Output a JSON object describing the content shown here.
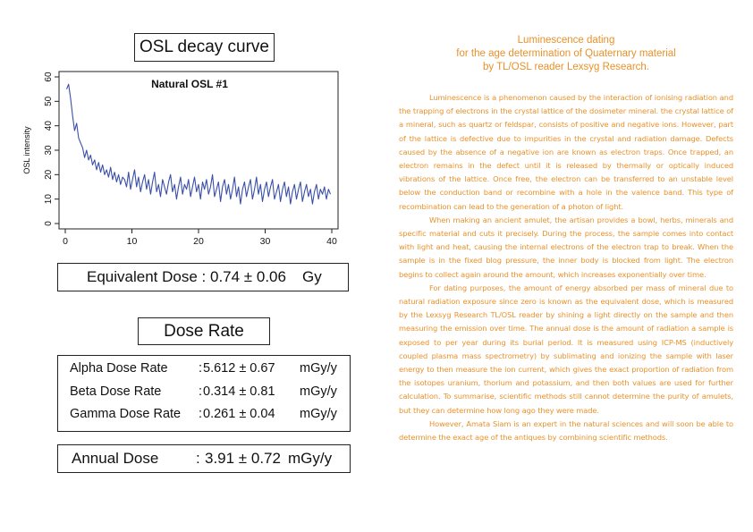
{
  "left_panel": {
    "osl_title": "OSL decay curve",
    "equivalent_dose": {
      "label": "Equivalent Dose :",
      "value": "0.74 ± 0.06",
      "unit": "Gy"
    },
    "dose_rate_title": "Dose Rate",
    "dose_rates": [
      {
        "label": "Alpha Dose Rate",
        "sep": ":",
        "value": "5.612 ± 0.67",
        "unit": "mGy/y"
      },
      {
        "label": "Beta Dose Rate",
        "sep": ":",
        "value": "0.314 ± 0.81",
        "unit": "mGy/y"
      },
      {
        "label": "Gamma Dose Rate",
        "sep": ":",
        "value": "0.261 ± 0.04",
        "unit": "mGy/y"
      }
    ],
    "annual_dose": {
      "label": "Annual Dose",
      "sep": ":",
      "value": "3.91 ± 0.72",
      "unit": "mGy/y"
    }
  },
  "chart_data": {
    "type": "line",
    "title": "Natural OSL #1",
    "xlabel": "",
    "ylabel": "OSL intensity",
    "xlim": [
      0,
      40
    ],
    "ylim": [
      0,
      60
    ],
    "xticks": [
      0,
      10,
      20,
      30,
      40
    ],
    "yticks": [
      0,
      10,
      20,
      30,
      40,
      50,
      60
    ],
    "color": "#3a4fa8",
    "series": [
      {
        "values": [
          [
            0.2,
            55
          ],
          [
            0.5,
            57
          ],
          [
            0.8,
            51
          ],
          [
            1.1,
            44
          ],
          [
            1.4,
            38
          ],
          [
            1.7,
            41
          ],
          [
            2.0,
            35
          ],
          [
            2.3,
            33
          ],
          [
            2.6,
            31
          ],
          [
            2.9,
            27
          ],
          [
            3.2,
            30
          ],
          [
            3.5,
            26
          ],
          [
            3.8,
            28
          ],
          [
            4.1,
            24
          ],
          [
            4.4,
            26
          ],
          [
            4.7,
            22
          ],
          [
            5.0,
            25
          ],
          [
            5.3,
            21
          ],
          [
            5.6,
            24
          ],
          [
            5.9,
            20
          ],
          [
            6.2,
            22
          ],
          [
            6.5,
            19
          ],
          [
            6.8,
            23
          ],
          [
            7.1,
            18
          ],
          [
            7.4,
            21
          ],
          [
            7.7,
            17
          ],
          [
            8.0,
            20
          ],
          [
            8.3,
            16
          ],
          [
            8.6,
            19
          ],
          [
            8.9,
            18
          ],
          [
            9.2,
            15
          ],
          [
            9.5,
            21
          ],
          [
            9.8,
            14
          ],
          [
            10.1,
            18
          ],
          [
            10.4,
            22
          ],
          [
            10.7,
            15
          ],
          [
            11.0,
            19
          ],
          [
            11.3,
            13
          ],
          [
            11.6,
            17
          ],
          [
            11.9,
            20
          ],
          [
            12.2,
            14
          ],
          [
            12.5,
            18
          ],
          [
            12.8,
            12
          ],
          [
            13.1,
            17
          ],
          [
            13.4,
            21
          ],
          [
            13.7,
            13
          ],
          [
            14.0,
            16
          ],
          [
            14.3,
            11
          ],
          [
            14.6,
            18
          ],
          [
            14.9,
            15
          ],
          [
            15.2,
            12
          ],
          [
            15.5,
            17
          ],
          [
            15.8,
            20
          ],
          [
            16.1,
            13
          ],
          [
            16.4,
            16
          ],
          [
            16.7,
            10
          ],
          [
            17.0,
            15
          ],
          [
            17.3,
            19
          ],
          [
            17.6,
            12
          ],
          [
            17.9,
            16
          ],
          [
            18.2,
            14
          ],
          [
            18.5,
            18
          ],
          [
            18.8,
            11
          ],
          [
            19.1,
            15
          ],
          [
            19.4,
            19
          ],
          [
            19.7,
            13
          ],
          [
            20.0,
            16
          ],
          [
            20.3,
            10
          ],
          [
            20.6,
            17
          ],
          [
            20.9,
            14
          ],
          [
            21.2,
            18
          ],
          [
            21.5,
            12
          ],
          [
            21.8,
            15
          ],
          [
            22.1,
            20
          ],
          [
            22.4,
            11
          ],
          [
            22.7,
            14
          ],
          [
            23.0,
            17
          ],
          [
            23.3,
            9
          ],
          [
            23.6,
            15
          ],
          [
            23.9,
            18
          ],
          [
            24.2,
            12
          ],
          [
            24.5,
            16
          ],
          [
            24.8,
            10
          ],
          [
            25.1,
            14
          ],
          [
            25.4,
            19
          ],
          [
            25.7,
            11
          ],
          [
            26.0,
            15
          ],
          [
            26.3,
            8
          ],
          [
            26.6,
            14
          ],
          [
            26.9,
            17
          ],
          [
            27.2,
            11
          ],
          [
            27.5,
            15
          ],
          [
            27.8,
            18
          ],
          [
            28.1,
            10
          ],
          [
            28.4,
            14
          ],
          [
            28.7,
            19
          ],
          [
            29.0,
            12
          ],
          [
            29.3,
            16
          ],
          [
            29.6,
            9
          ],
          [
            29.9,
            14
          ],
          [
            30.2,
            17
          ],
          [
            30.5,
            11
          ],
          [
            30.8,
            15
          ],
          [
            31.1,
            18
          ],
          [
            31.4,
            10
          ],
          [
            31.7,
            13
          ],
          [
            32.0,
            16
          ],
          [
            32.3,
            9
          ],
          [
            32.6,
            14
          ],
          [
            32.9,
            17
          ],
          [
            33.2,
            11
          ],
          [
            33.5,
            15
          ],
          [
            33.8,
            8
          ],
          [
            34.1,
            13
          ],
          [
            34.4,
            16
          ],
          [
            34.7,
            10
          ],
          [
            35.0,
            14
          ],
          [
            35.3,
            17
          ],
          [
            35.6,
            9
          ],
          [
            35.9,
            13
          ],
          [
            36.2,
            16
          ],
          [
            36.5,
            11
          ],
          [
            36.8,
            14
          ],
          [
            37.1,
            8
          ],
          [
            37.4,
            13
          ],
          [
            37.7,
            16
          ],
          [
            38.0,
            10
          ],
          [
            38.3,
            14
          ],
          [
            38.6,
            12
          ],
          [
            38.9,
            15
          ],
          [
            39.2,
            10
          ],
          [
            39.5,
            14
          ],
          [
            39.8,
            12
          ]
        ]
      }
    ]
  },
  "article": {
    "title_lines": [
      "Luminescence dating",
      "for the age determination of Quaternary material",
      "by TL/OSL reader Lexsyg Research."
    ],
    "paragraphs": [
      "Luminescence is a phenomenon caused by the interaction of ionising radiation and the trapping of electrons in the crystal lattice of the dosimeter mineral. the crystal lattice of a mineral, such as quartz or feldspar, consists of positive and negative ions. However, part of the lattice is defective due to impurities in the crystal and radiation damage. Defects caused by the absence of a negative ion are known as electron traps. Once trapped, an electron remains in the defect until it is released by thermally or optically induced vibrations of the lattice. Once free, the electron can be transferred to an unstable level below the conduction band or recombine with a hole in the valence band. This type of recombination can lead to the generation of a photon of light.",
      "When making an ancient amulet, the artisan provides a bowl, herbs, minerals and specific material and cuts it precisely. During the process, the sample comes into contact with light and heat, causing the internal electrons of the electron trap to break. When the sample is in the fixed blog pressure, the inner body is blocked from light. The electron begins to collect again around the amount, which increases exponentially over time.",
      "For dating purposes, the amount of energy absorbed per mass of mineral due to natural radiation exposure since zero is known as the equivalent dose, which is measured by the Lexsyg Research TL/OSL reader by shining a light directly on the sample and then measuring the emission over time. The annual dose is the amount of radiation a sample is exposed to per year during its burial period. It is measured using ICP-MS (inductively coupled plasma mass spectrometry) by sublimating and ionizing the sample with laser energy to then measure the ion current, which gives the exact proportion of radiation from the isotopes uranium, thorium and potassium, and then both values are used for further calculation. To summarise, scientific methods still cannot determine the purity of amulets, but they can determine how long ago they were made.",
      "However, Amata Siam is an expert in the natural sciences and will soon be able to determine the exact age of the antiques by combining scientific methods."
    ]
  }
}
